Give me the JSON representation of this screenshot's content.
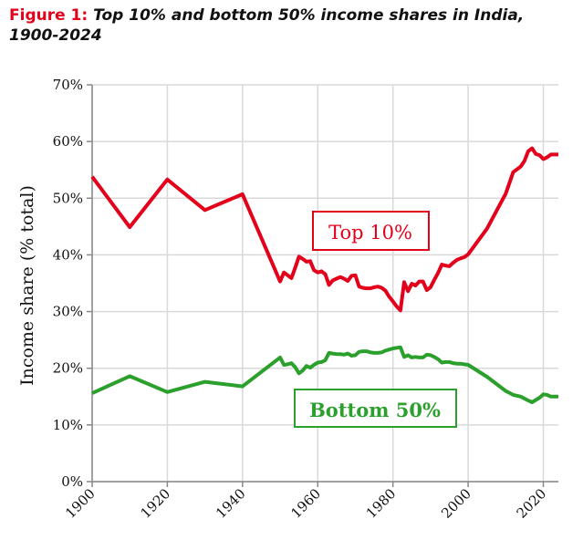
{
  "title": {
    "figure": "Figure 1:",
    "text": "Top 10% and bottom 50% income shares in India, 1900-2024"
  },
  "chart_data": {
    "type": "line",
    "title": "Top 10% and bottom 50% income shares in India, 1900-2024",
    "xlabel": "",
    "ylabel": "Income share (% total)",
    "xlim": [
      1900,
      2024
    ],
    "ylim": [
      0,
      70
    ],
    "grid": true,
    "x_ticks": [
      "1900",
      "1920",
      "1940",
      "1960",
      "1980",
      "2000",
      "2020"
    ],
    "y_ticks": [
      "0%",
      "10%",
      "20%",
      "30%",
      "40%",
      "50%",
      "60%",
      "70%"
    ],
    "colors": {
      "top10": "#e3001b",
      "bottom50": "#2ca02c"
    },
    "series": [
      {
        "name": "Top 10%",
        "points": [
          [
            1900,
            53.8
          ],
          [
            1910,
            44.9
          ],
          [
            1920,
            53.3
          ],
          [
            1930,
            47.9
          ],
          [
            1940,
            50.7
          ],
          [
            1950,
            35.3
          ],
          [
            1951,
            36.9
          ],
          [
            1952,
            36.4
          ],
          [
            1953,
            35.9
          ],
          [
            1954,
            37.7
          ],
          [
            1955,
            39.7
          ],
          [
            1956,
            39.3
          ],
          [
            1957,
            38.8
          ],
          [
            1958,
            38.9
          ],
          [
            1959,
            37.3
          ],
          [
            1960,
            36.9
          ],
          [
            1961,
            37.1
          ],
          [
            1962,
            36.6
          ],
          [
            1963,
            34.7
          ],
          [
            1964,
            35.5
          ],
          [
            1965,
            35.8
          ],
          [
            1966,
            36.1
          ],
          [
            1967,
            35.8
          ],
          [
            1968,
            35.4
          ],
          [
            1969,
            36.3
          ],
          [
            1970,
            36.4
          ],
          [
            1971,
            34.4
          ],
          [
            1972,
            34.2
          ],
          [
            1973,
            34.1
          ],
          [
            1974,
            34.1
          ],
          [
            1975,
            34.3
          ],
          [
            1976,
            34.4
          ],
          [
            1977,
            34.2
          ],
          [
            1978,
            33.7
          ],
          [
            1979,
            32.6
          ],
          [
            1980,
            31.8
          ],
          [
            1981,
            30.9
          ],
          [
            1982,
            30.2
          ],
          [
            1983,
            35.2
          ],
          [
            1984,
            33.6
          ],
          [
            1985,
            34.9
          ],
          [
            1986,
            34.6
          ],
          [
            1987,
            35.3
          ],
          [
            1988,
            35.3
          ],
          [
            1989,
            33.8
          ],
          [
            1990,
            34.3
          ],
          [
            1991,
            35.6
          ],
          [
            1992,
            36.8
          ],
          [
            1993,
            38.3
          ],
          [
            1994,
            38.1
          ],
          [
            1995,
            38.0
          ],
          [
            1996,
            38.6
          ],
          [
            1997,
            39.1
          ],
          [
            1998,
            39.4
          ],
          [
            1999,
            39.6
          ],
          [
            2000,
            40.1
          ],
          [
            2005,
            44.6
          ],
          [
            2010,
            50.8
          ],
          [
            2012,
            54.6
          ],
          [
            2013,
            55.1
          ],
          [
            2014,
            55.6
          ],
          [
            2015,
            56.6
          ],
          [
            2016,
            58.3
          ],
          [
            2017,
            58.8
          ],
          [
            2018,
            57.8
          ],
          [
            2019,
            57.6
          ],
          [
            2020,
            56.9
          ],
          [
            2021,
            57.2
          ],
          [
            2022,
            57.7
          ],
          [
            2023,
            57.7
          ],
          [
            2024,
            57.7
          ]
        ]
      },
      {
        "name": "Bottom 50%",
        "points": [
          [
            1900,
            15.6
          ],
          [
            1910,
            18.6
          ],
          [
            1920,
            15.8
          ],
          [
            1930,
            17.6
          ],
          [
            1940,
            16.8
          ],
          [
            1950,
            21.9
          ],
          [
            1951,
            20.6
          ],
          [
            1952,
            20.7
          ],
          [
            1953,
            20.9
          ],
          [
            1954,
            20.2
          ],
          [
            1955,
            19.1
          ],
          [
            1956,
            19.6
          ],
          [
            1957,
            20.4
          ],
          [
            1958,
            20.1
          ],
          [
            1959,
            20.6
          ],
          [
            1960,
            21.0
          ],
          [
            1961,
            21.1
          ],
          [
            1962,
            21.4
          ],
          [
            1963,
            22.7
          ],
          [
            1964,
            22.6
          ],
          [
            1965,
            22.5
          ],
          [
            1966,
            22.5
          ],
          [
            1967,
            22.4
          ],
          [
            1968,
            22.6
          ],
          [
            1969,
            22.2
          ],
          [
            1970,
            22.3
          ],
          [
            1971,
            22.9
          ],
          [
            1972,
            23.0
          ],
          [
            1973,
            23.0
          ],
          [
            1974,
            22.8
          ],
          [
            1975,
            22.7
          ],
          [
            1976,
            22.7
          ],
          [
            1977,
            22.8
          ],
          [
            1978,
            23.1
          ],
          [
            1979,
            23.3
          ],
          [
            1980,
            23.5
          ],
          [
            1981,
            23.6
          ],
          [
            1982,
            23.7
          ],
          [
            1983,
            22.0
          ],
          [
            1984,
            22.3
          ],
          [
            1985,
            21.9
          ],
          [
            1986,
            22.0
          ],
          [
            1987,
            21.9
          ],
          [
            1988,
            21.9
          ],
          [
            1989,
            22.4
          ],
          [
            1990,
            22.3
          ],
          [
            1991,
            22.0
          ],
          [
            1992,
            21.6
          ],
          [
            1993,
            21.0
          ],
          [
            1994,
            21.1
          ],
          [
            1995,
            21.1
          ],
          [
            1996,
            20.9
          ],
          [
            1997,
            20.8
          ],
          [
            1998,
            20.8
          ],
          [
            1999,
            20.7
          ],
          [
            2000,
            20.6
          ],
          [
            2005,
            18.5
          ],
          [
            2010,
            16.0
          ],
          [
            2012,
            15.3
          ],
          [
            2014,
            15.0
          ],
          [
            2016,
            14.3
          ],
          [
            2017,
            14.0
          ],
          [
            2018,
            14.4
          ],
          [
            2019,
            14.8
          ],
          [
            2020,
            15.4
          ],
          [
            2021,
            15.3
          ],
          [
            2022,
            15.0
          ],
          [
            2023,
            15.0
          ],
          [
            2024,
            15.0
          ]
        ]
      }
    ],
    "annotations": [
      "Top 10%",
      "Bottom 50%"
    ]
  }
}
